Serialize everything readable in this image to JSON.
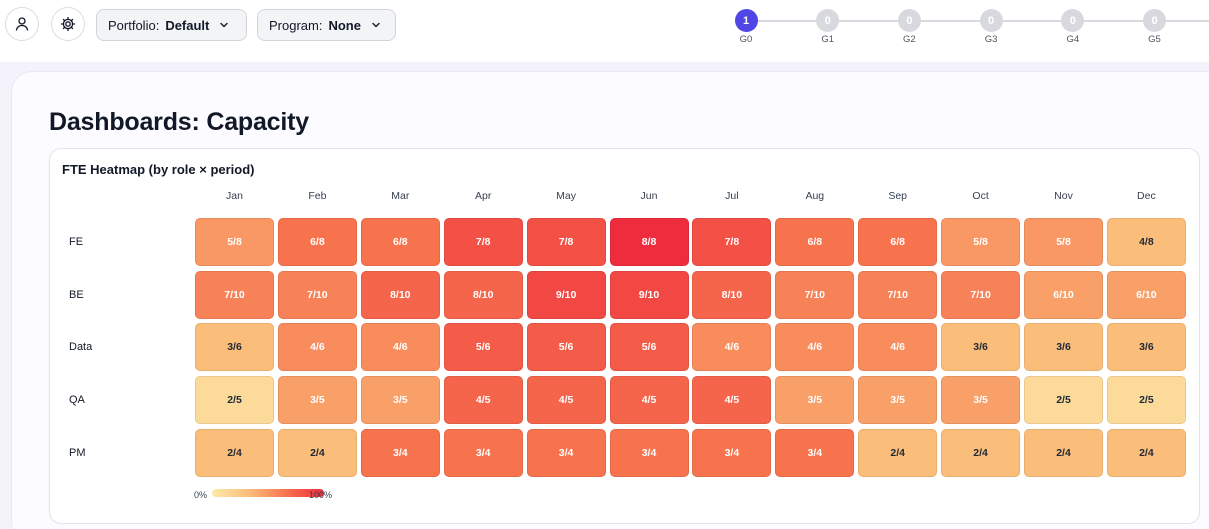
{
  "toolbar": {
    "user_icon": "user-icon",
    "settings_icon": "gear-icon",
    "portfolio": {
      "label": "Portfolio:",
      "value": "Default"
    },
    "program": {
      "label": "Program:",
      "value": "None"
    }
  },
  "stepper": {
    "steps": [
      {
        "count": "1",
        "name": "G0",
        "active": true
      },
      {
        "count": "0",
        "name": "G1",
        "active": false
      },
      {
        "count": "0",
        "name": "G2",
        "active": false
      },
      {
        "count": "0",
        "name": "G3",
        "active": false
      },
      {
        "count": "0",
        "name": "G4",
        "active": false
      },
      {
        "count": "0",
        "name": "G5",
        "active": false
      }
    ]
  },
  "page": {
    "title": "Dashboards: Capacity"
  },
  "heatmap": {
    "title": "FTE Heatmap (by role × period)",
    "months": [
      "Jan",
      "Feb",
      "Mar",
      "Apr",
      "May",
      "Jun",
      "Jul",
      "Aug",
      "Sep",
      "Oct",
      "Nov",
      "Dec"
    ],
    "roles": [
      {
        "name": "FE",
        "capacity": 8,
        "values": [
          5,
          6,
          6,
          7,
          7,
          8,
          7,
          6,
          6,
          5,
          5,
          4
        ]
      },
      {
        "name": "BE",
        "capacity": 10,
        "values": [
          7,
          7,
          8,
          8,
          9,
          9,
          8,
          7,
          7,
          7,
          6,
          6
        ]
      },
      {
        "name": "Data",
        "capacity": 6,
        "values": [
          3,
          4,
          4,
          5,
          5,
          5,
          4,
          4,
          4,
          3,
          3,
          3
        ]
      },
      {
        "name": "QA",
        "capacity": 5,
        "values": [
          2,
          3,
          3,
          4,
          4,
          4,
          4,
          3,
          3,
          3,
          2,
          2
        ]
      },
      {
        "name": "PM",
        "capacity": 4,
        "values": [
          2,
          2,
          3,
          3,
          3,
          3,
          3,
          3,
          2,
          2,
          2,
          2
        ]
      }
    ],
    "legend": {
      "min": "0%",
      "max": "100%"
    },
    "colors": {
      "low": "#fde9a8",
      "mid": "#fbbd7a",
      "high": "#f7734e",
      "max": "#ee2c3d"
    }
  }
}
